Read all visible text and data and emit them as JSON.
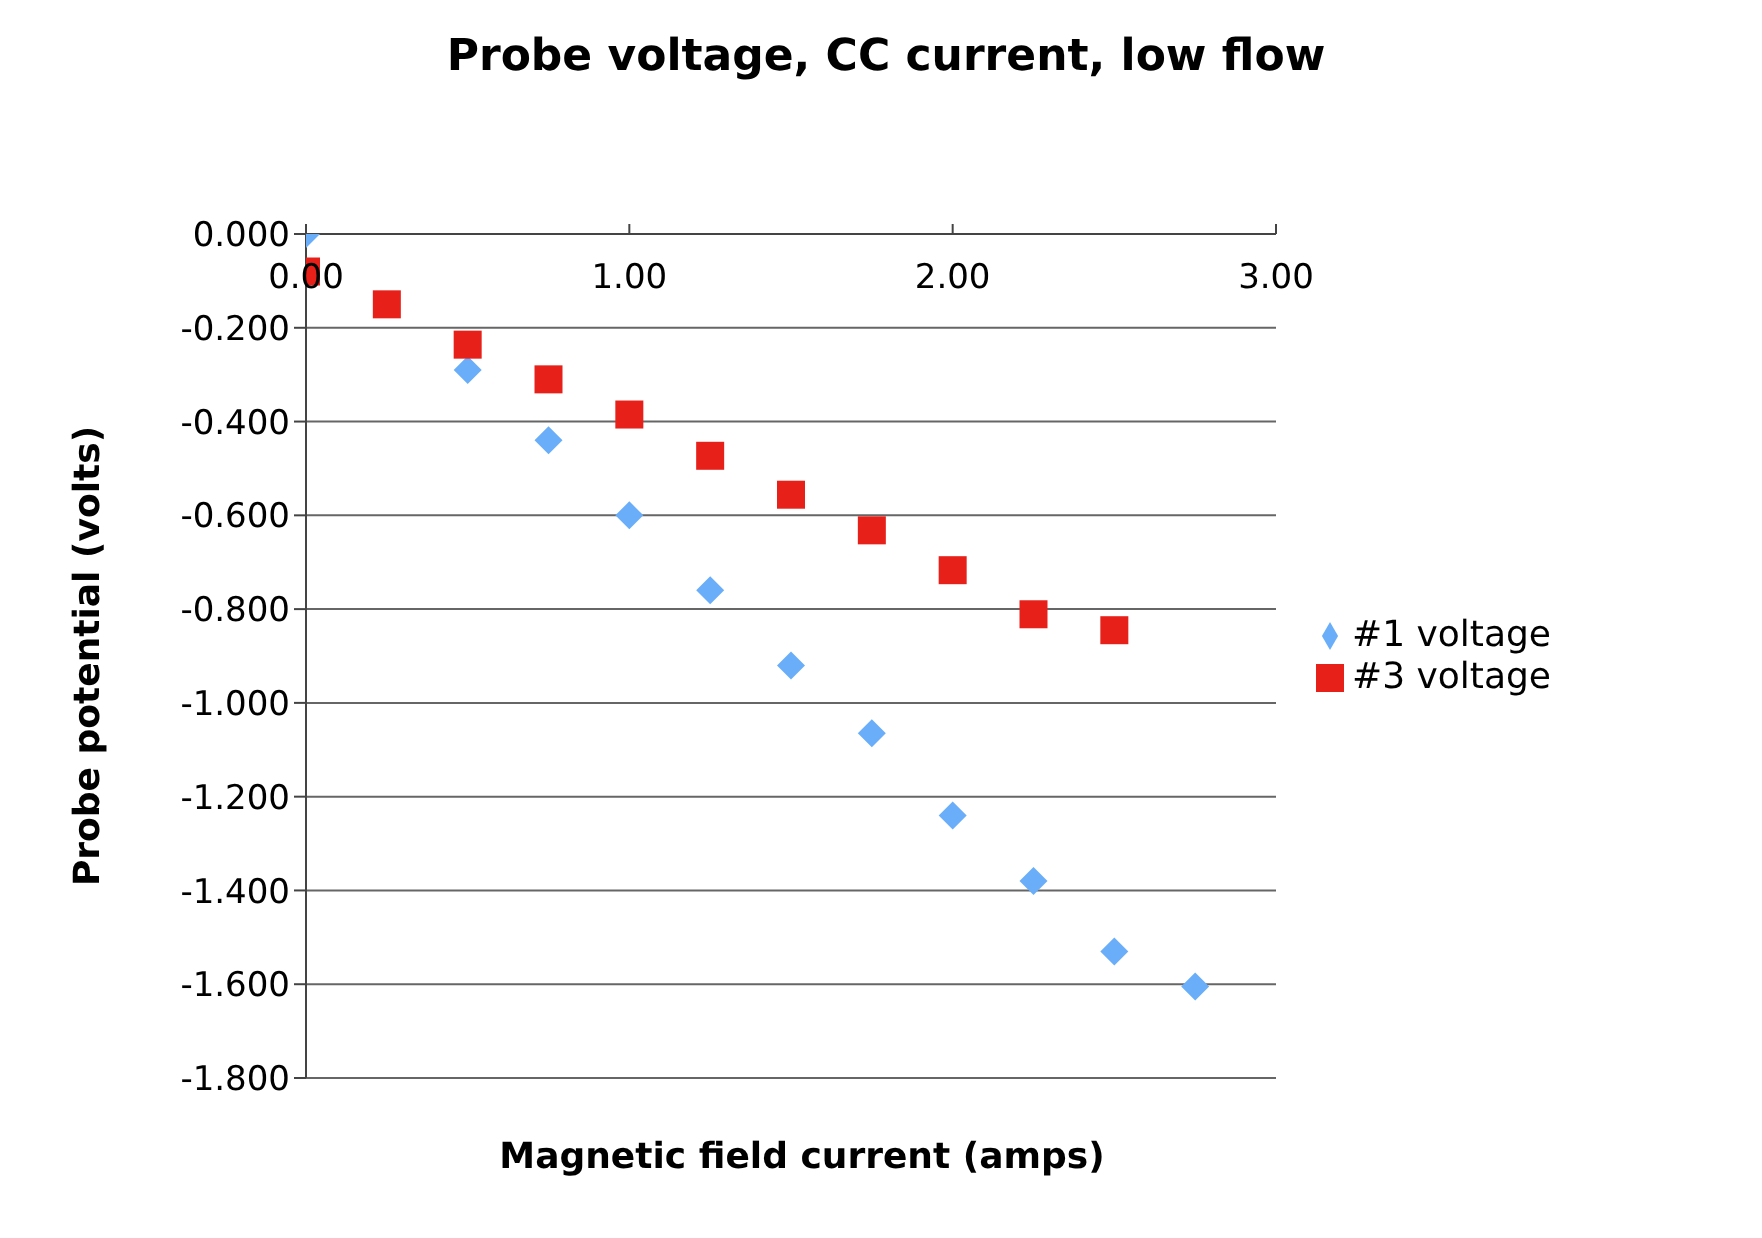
{
  "chart_data": {
    "type": "scatter",
    "title": "Probe voltage, CC current, low flow",
    "xlabel": "Magnetic field current (amps)",
    "ylabel": "Probe potential (volts)",
    "xlim": [
      0,
      3
    ],
    "xticks": [
      {
        "value": 0,
        "label": "0.00"
      },
      {
        "value": 1,
        "label": "1.00"
      },
      {
        "value": 2,
        "label": "2.00"
      },
      {
        "value": 3,
        "label": "3.00"
      }
    ],
    "ylim": [
      -1.8,
      0
    ],
    "yticks": [
      {
        "value": 0,
        "label": "0.000"
      },
      {
        "value": -0.2,
        "label": "-0.200"
      },
      {
        "value": -0.4,
        "label": "-0.400"
      },
      {
        "value": -0.6,
        "label": "-0.600"
      },
      {
        "value": -0.8,
        "label": "-0.800"
      },
      {
        "value": -1,
        "label": "-1.000"
      },
      {
        "value": -1.2,
        "label": "-1.200"
      },
      {
        "value": -1.4,
        "label": "-1.400"
      },
      {
        "value": -1.6,
        "label": "-1.600"
      },
      {
        "value": -1.8,
        "label": "-1.800"
      }
    ],
    "grid": "y",
    "legend": "right",
    "series": [
      {
        "name": "#1 voltage",
        "color": "#6aaefa",
        "marker": "diamond",
        "x": [
          0,
          0.5,
          0.75,
          1,
          1.25,
          1.5,
          1.75,
          2,
          2.25,
          2.5,
          2.75
        ],
        "values": [
          0,
          -0.29,
          -0.44,
          -0.6,
          -0.76,
          -0.92,
          -1.065,
          -1.24,
          -1.38,
          -1.53,
          -1.605
        ]
      },
      {
        "name": "#3 voltage",
        "color": "#e8201a",
        "marker": "square",
        "x": [
          0,
          0.25,
          0.5,
          0.75,
          1,
          1.25,
          1.5,
          1.75,
          2,
          2.25,
          2.5
        ],
        "values": [
          -0.08,
          -0.15,
          -0.236,
          -0.31,
          -0.385,
          -0.473,
          -0.556,
          -0.632,
          -0.717,
          -0.811,
          -0.845
        ]
      }
    ]
  }
}
